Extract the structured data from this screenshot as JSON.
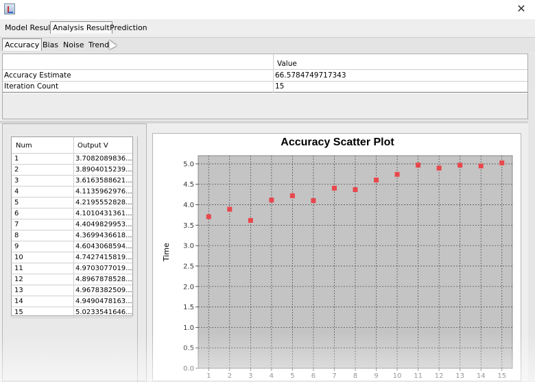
{
  "window": {
    "close_glyph": "✕"
  },
  "tabs_main": [
    {
      "label": "Model Result",
      "selected": false
    },
    {
      "label": "Analysis Result",
      "selected": true
    },
    {
      "label": "Prediction",
      "selected": false
    }
  ],
  "tabs_sub": [
    {
      "label": "Accuracy",
      "selected": true
    },
    {
      "label": "Bias",
      "selected": false
    },
    {
      "label": "Noise",
      "selected": false
    },
    {
      "label": "Trend",
      "selected": false
    }
  ],
  "summary": {
    "header_value": "Value",
    "rows": [
      {
        "name": "Accuracy Estimate",
        "value": "66.5784749717343"
      },
      {
        "name": "Iteration Count",
        "value": "15"
      }
    ]
  },
  "output_table": {
    "headers": [
      "Num",
      "Output V"
    ],
    "rows": [
      [
        "1",
        "3.7082089836..."
      ],
      [
        "2",
        "3.8904015239..."
      ],
      [
        "3",
        "3.6163588621..."
      ],
      [
        "4",
        "4.1135962976..."
      ],
      [
        "5",
        "4.2195552828..."
      ],
      [
        "6",
        "4.1010431361..."
      ],
      [
        "7",
        "4.4049829953..."
      ],
      [
        "8",
        "4.3699436618..."
      ],
      [
        "9",
        "4.6043068594..."
      ],
      [
        "10",
        "4.7427415819..."
      ],
      [
        "11",
        "4.9703077019..."
      ],
      [
        "12",
        "4.8967878528..."
      ],
      [
        "13",
        "4.9678382509..."
      ],
      [
        "14",
        "4.9490478163..."
      ],
      [
        "15",
        "5.0233541646..."
      ]
    ]
  },
  "chart_data": {
    "type": "scatter",
    "title": "Accuracy Scatter Plot",
    "ylabel": "Time",
    "xlabel": "",
    "x": [
      1,
      2,
      3,
      4,
      5,
      6,
      7,
      8,
      9,
      10,
      11,
      12,
      13,
      14,
      15
    ],
    "y": [
      3.708,
      3.89,
      3.616,
      4.114,
      4.22,
      4.101,
      4.405,
      4.37,
      4.604,
      4.743,
      4.97,
      4.897,
      4.968,
      4.949,
      5.023
    ],
    "xticks": [
      "1",
      "2",
      "3",
      "4",
      "5",
      "6",
      "7",
      "8",
      "9",
      "10",
      "11",
      "12",
      "13",
      "14",
      "15"
    ],
    "yticks": [
      "0.0",
      "0.5",
      "1.0",
      "1.5",
      "2.0",
      "2.5",
      "3.0",
      "3.5",
      "4.0",
      "4.5",
      "5.0"
    ],
    "ylim": [
      0,
      5.2
    ],
    "xlim": [
      0.5,
      15.5
    ],
    "grid": true,
    "point_color": "#e8474c",
    "plot_bg": "#c4c4c4"
  }
}
